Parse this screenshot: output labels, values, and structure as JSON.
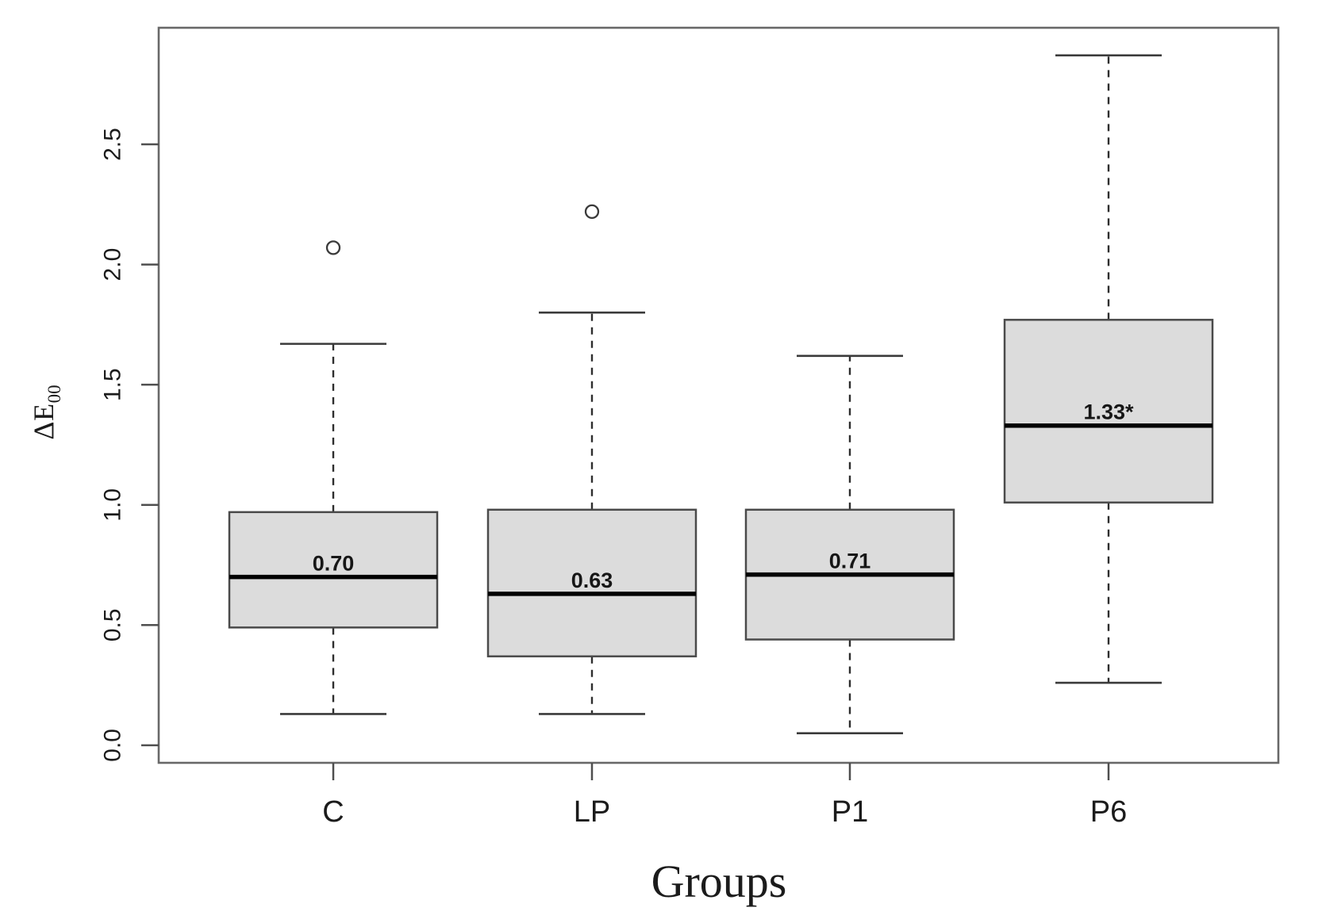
{
  "chart_data": {
    "type": "box",
    "title": "",
    "xlabel": "Groups",
    "ylabel_main": "ΔE",
    "ylabel_sub": "00",
    "categories": [
      "C",
      "LP",
      "P1",
      "P6"
    ],
    "y_ticks": [
      "0.0",
      "0.5",
      "1.0",
      "1.5",
      "2.0",
      "2.5"
    ],
    "y_tick_values": [
      0.0,
      0.5,
      1.0,
      1.5,
      2.0,
      2.5
    ],
    "ylim": [
      -0.073,
      2.985
    ],
    "grid": false,
    "legend": false,
    "groups": [
      {
        "label": "C",
        "whisker_low": 0.13,
        "q1": 0.49,
        "median": 0.7,
        "q3": 0.97,
        "whisker_high": 1.67,
        "outliers": [
          2.07
        ],
        "median_label": "0.70"
      },
      {
        "label": "LP",
        "whisker_low": 0.13,
        "q1": 0.37,
        "median": 0.63,
        "q3": 0.98,
        "whisker_high": 1.8,
        "outliers": [
          2.22
        ],
        "median_label": "0.63"
      },
      {
        "label": "P1",
        "whisker_low": 0.05,
        "q1": 0.44,
        "median": 0.71,
        "q3": 0.98,
        "whisker_high": 1.62,
        "outliers": [],
        "median_label": "0.71"
      },
      {
        "label": "P6",
        "whisker_low": 0.26,
        "q1": 1.01,
        "median": 1.33,
        "q3": 1.77,
        "whisker_high": 2.87,
        "outliers": [],
        "median_label": "1.33*"
      }
    ],
    "colors": {
      "box_fill": "#dcdcdc",
      "box_border": "#4a4a4a",
      "median_line": "#000000",
      "whisker": "#2e2e2e",
      "cap": "#3a3a3a",
      "frame": "#686868",
      "tick": "#4f4f4f",
      "text": "#1b1b1b"
    }
  }
}
